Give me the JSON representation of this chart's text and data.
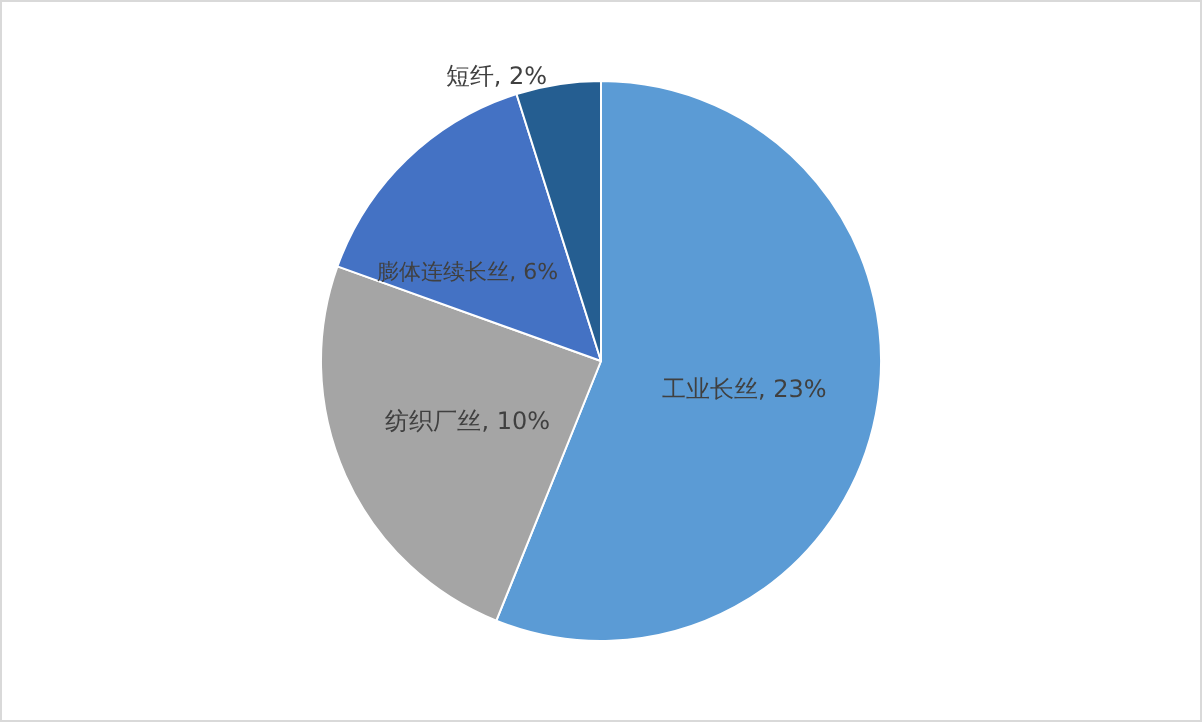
{
  "chart_data": {
    "type": "pie",
    "categories": [
      "工业长丝",
      "纺织厂丝",
      "膨体连续长丝",
      "短纤"
    ],
    "values": [
      23,
      10,
      6,
      2
    ],
    "value_labels": [
      "23%",
      "10%",
      "6%",
      "2%"
    ],
    "colors": [
      "#5b9bd5",
      "#a5a5a5",
      "#4472c4",
      "#255e91"
    ],
    "legend": false
  }
}
